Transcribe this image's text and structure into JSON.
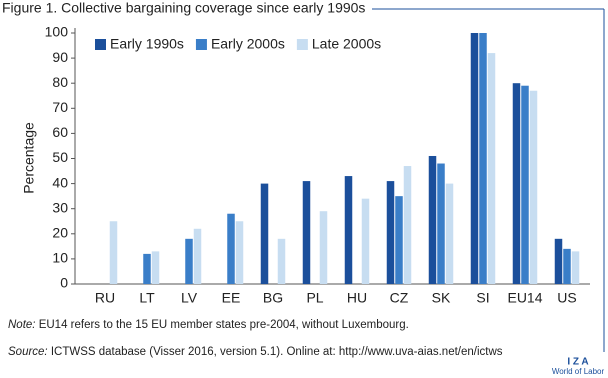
{
  "chart_data": {
    "type": "bar",
    "title": "Figure 1. Collective bargaining coverage since early 1990s",
    "ylabel": "Percentage",
    "categories": [
      "RU",
      "LT",
      "LV",
      "EE",
      "BG",
      "PL",
      "HU",
      "CZ",
      "SK",
      "SI",
      "EU14",
      "US"
    ],
    "series": [
      {
        "name": "Early 1990s",
        "color": "#1b4f9b",
        "values": [
          null,
          null,
          null,
          null,
          40,
          41,
          43,
          41,
          51,
          100,
          80,
          18
        ]
      },
      {
        "name": "Early 2000s",
        "color": "#3a7ec8",
        "values": [
          null,
          12,
          18,
          28,
          null,
          null,
          null,
          35,
          48,
          100,
          79,
          14
        ]
      },
      {
        "name": "Late 2000s",
        "color": "#c7ddf1",
        "values": [
          25,
          13,
          22,
          25,
          18,
          29,
          34,
          47,
          40,
          92,
          77,
          13
        ]
      }
    ],
    "ylim": [
      0,
      100
    ],
    "yticks": [
      0,
      10,
      20,
      30,
      40,
      50,
      60,
      70,
      80,
      90,
      100
    ],
    "grid": false,
    "legend": "top-left"
  },
  "notes": [
    {
      "label": "Note:",
      "text": " EU14 refers to the 15 EU member states pre-2004, without Luxembourg."
    },
    {
      "label": "Source:",
      "text": " ICTWSS database (Visser 2016, version 5.1). Online at: http://www.uva-aias.net/en/ictws"
    }
  ],
  "branding": {
    "logo": "I Z A",
    "subtitle": "World of Labor"
  }
}
